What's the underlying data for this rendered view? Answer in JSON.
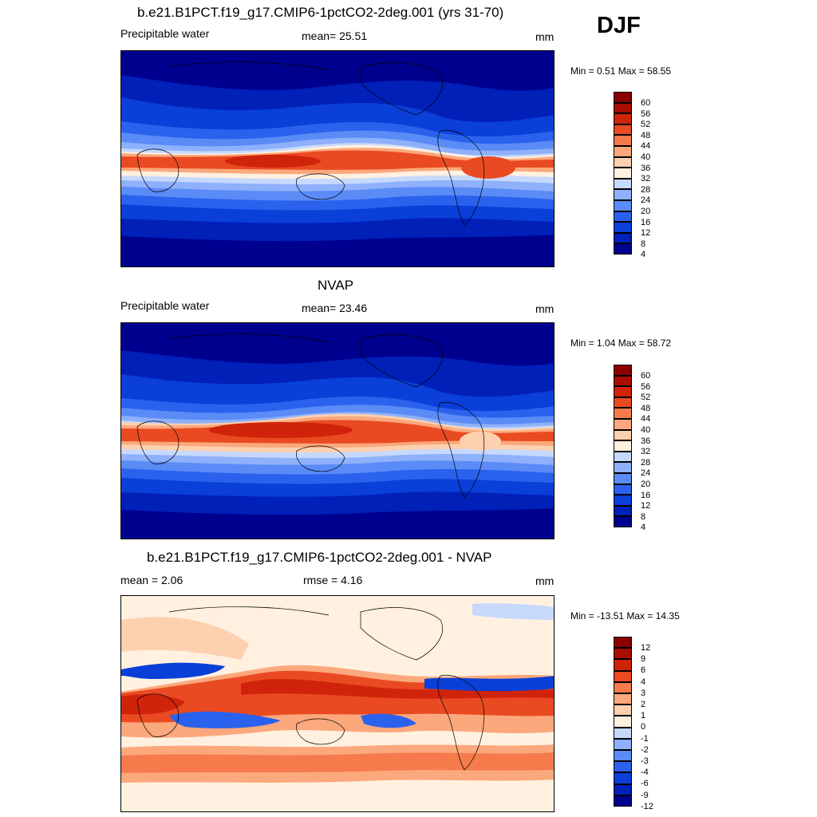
{
  "season": "DJF",
  "colors": {
    "cb11": [
      "#00008f",
      "#0020b8",
      "#0a3fd8",
      "#2a62ee",
      "#5a8bf6",
      "#8fb0fa",
      "#c6d9fd",
      "#fff0e0",
      "#fdd0b0",
      "#fba87c",
      "#f67a4c",
      "#ea4a22",
      "#cf240a",
      "#a80e02",
      "#8a0000"
    ],
    "cb3": [
      "#00008f",
      "#0020b8",
      "#0a3fd8",
      "#2a62ee",
      "#5a8bf6",
      "#8fb0fa",
      "#c6d9fd",
      "#fff0e0",
      "#fdd0b0",
      "#fba87c",
      "#f67a4c",
      "#ea4a22",
      "#cf240a",
      "#a80e02",
      "#8a0000"
    ]
  },
  "panels": [
    {
      "title": "b.e21.B1PCT.f19_g17.CMIP6-1pctCO2-2deg.001 (yrs 31-70)",
      "left_label": "Precipitable water",
      "center_label": "mean=  25.51",
      "units": "mm",
      "minmax": "Min =   0.51 Max =  58.55",
      "cb_ticks": [
        "60",
        "56",
        "52",
        "48",
        "44",
        "40",
        "36",
        "32",
        "28",
        "24",
        "20",
        "16",
        "12",
        "8",
        "4"
      ]
    },
    {
      "title": "NVAP",
      "left_label": "Precipitable water",
      "center_label": "mean=  23.46",
      "units": "mm",
      "minmax": "Min =   1.04 Max =  58.72",
      "cb_ticks": [
        "60",
        "56",
        "52",
        "48",
        "44",
        "40",
        "36",
        "32",
        "28",
        "24",
        "20",
        "16",
        "12",
        "8",
        "4"
      ]
    },
    {
      "title": "b.e21.B1PCT.f19_g17.CMIP6-1pctCO2-2deg.001 - NVAP",
      "left_label": "mean =   2.06",
      "center_label": "rmse =   4.16",
      "units": "mm",
      "minmax": "Min = -13.51 Max =  14.35",
      "cb_ticks": [
        "12",
        "9",
        "6",
        "4",
        "3",
        "2",
        "1",
        "0",
        "-1",
        "-2",
        "-3",
        "-4",
        "-6",
        "-9",
        "-12"
      ]
    }
  ]
}
